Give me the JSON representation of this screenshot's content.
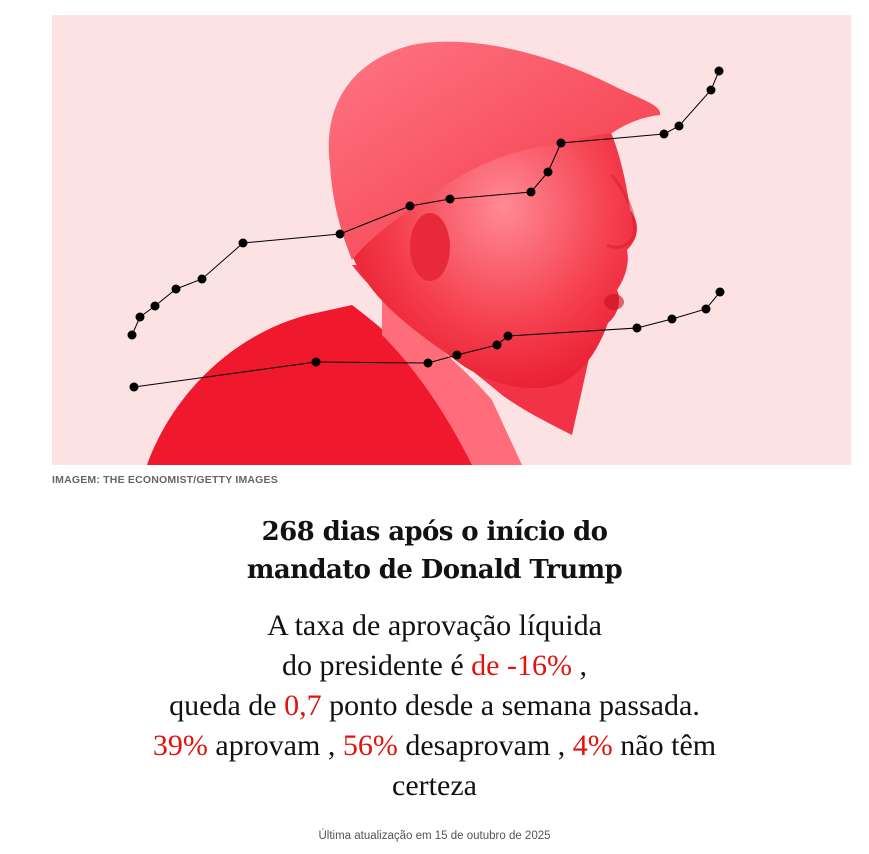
{
  "image": {
    "credit": "IMAGEM: THE ECONOMIST/GETTY IMAGES",
    "background_color": "#fde2e4",
    "portrait_color": "#f5273a",
    "line_color": "#000000"
  },
  "headline": {
    "line1": "268 dias após o início do",
    "line2": "mandato de Donald Trump"
  },
  "summary": {
    "line1": "A taxa de aprovação líquida",
    "line2_prefix": "do presidente é",
    "net_rate": "de -16%",
    "line2_suffix": ",",
    "line3_prefix": "queda de",
    "change": "0,7",
    "line3_suffix": "ponto desde a semana passada.",
    "approve_value": "39%",
    "approve_label": "aprovam ,",
    "disapprove_value": "56%",
    "disapprove_label": "desaprovam ,",
    "unsure_value": "4%",
    "unsure_label": "não têm",
    "unsure_label_cont": "certeza"
  },
  "updated": "Última atualização em 15 de outubro de 2025",
  "accent_color": "#e3120b"
}
